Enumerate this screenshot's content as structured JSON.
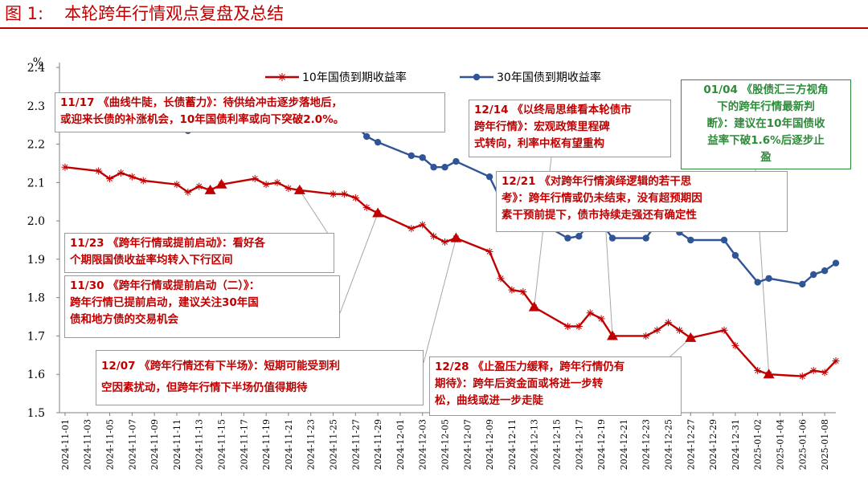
{
  "figure": {
    "number": "图 1:",
    "title": "本轮跨年行情观点复盘及总结"
  },
  "colors": {
    "title": "#c00000",
    "series_10y": "#c00000",
    "series_30y": "#2f5597",
    "annotation_text": "#c00000",
    "annotation_green": "#2e8b3a"
  },
  "chart_data": {
    "type": "line",
    "ylabel": "%",
    "ylim": [
      1.5,
      2.4
    ],
    "yticks": [
      "1.5",
      "1.6",
      "1.7",
      "1.8",
      "1.9",
      "2.0",
      "2.1",
      "2.2",
      "2.3",
      "2.4"
    ],
    "xticks": [
      "2024-11-01",
      "2024-11-03",
      "2024-11-05",
      "2024-11-07",
      "2024-11-09",
      "2024-11-11",
      "2024-11-13",
      "2024-11-15",
      "2024-11-17",
      "2024-11-19",
      "2024-11-21",
      "2024-11-23",
      "2024-11-25",
      "2024-11-27",
      "2024-11-29",
      "2024-12-01",
      "2024-12-03",
      "2024-12-05",
      "2024-12-07",
      "2024-12-09",
      "2024-12-11",
      "2024-12-13",
      "2024-12-15",
      "2024-12-17",
      "2024-12-19",
      "2024-12-21",
      "2024-12-23",
      "2024-12-25",
      "2024-12-27",
      "2024-12-29",
      "2024-12-31",
      "2025-01-02",
      "2025-01-04",
      "2025-01-06",
      "2025-01-08"
    ],
    "legend_position": "top-center",
    "grid": false,
    "series": [
      {
        "name": "10年国债到期收益率",
        "color": "#c00000",
        "marker": "star",
        "points": [
          [
            "2024-11-01",
            2.14
          ],
          [
            "2024-11-04",
            2.13
          ],
          [
            "2024-11-05",
            2.11
          ],
          [
            "2024-11-06",
            2.125
          ],
          [
            "2024-11-07",
            2.115
          ],
          [
            "2024-11-08",
            2.105
          ],
          [
            "2024-11-11",
            2.095
          ],
          [
            "2024-11-12",
            2.075
          ],
          [
            "2024-11-13",
            2.09
          ],
          [
            "2024-11-14",
            2.08
          ],
          [
            "2024-11-15",
            2.095
          ],
          [
            "2024-11-18",
            2.11
          ],
          [
            "2024-11-19",
            2.095
          ],
          [
            "2024-11-20",
            2.1
          ],
          [
            "2024-11-21",
            2.085
          ],
          [
            "2024-11-22",
            2.08
          ],
          [
            "2024-11-25",
            2.07
          ],
          [
            "2024-11-26",
            2.07
          ],
          [
            "2024-11-27",
            2.06
          ],
          [
            "2024-11-28",
            2.035
          ],
          [
            "2024-11-29",
            2.02
          ],
          [
            "2024-12-02",
            1.98
          ],
          [
            "2024-12-03",
            1.99
          ],
          [
            "2024-12-04",
            1.96
          ],
          [
            "2024-12-05",
            1.945
          ],
          [
            "2024-12-06",
            1.955
          ],
          [
            "2024-12-09",
            1.92
          ],
          [
            "2024-12-10",
            1.85
          ],
          [
            "2024-12-11",
            1.82
          ],
          [
            "2024-12-12",
            1.815
          ],
          [
            "2024-12-13",
            1.775
          ],
          [
            "2024-12-16",
            1.725
          ],
          [
            "2024-12-17",
            1.725
          ],
          [
            "2024-12-18",
            1.76
          ],
          [
            "2024-12-19",
            1.745
          ],
          [
            "2024-12-20",
            1.7
          ],
          [
            "2024-12-23",
            1.7
          ],
          [
            "2024-12-24",
            1.715
          ],
          [
            "2024-12-25",
            1.735
          ],
          [
            "2024-12-26",
            1.715
          ],
          [
            "2024-12-27",
            1.695
          ],
          [
            "2024-12-30",
            1.715
          ],
          [
            "2024-12-31",
            1.675
          ],
          [
            "2025-01-02",
            1.61
          ],
          [
            "2025-01-03",
            1.6
          ],
          [
            "2025-01-06",
            1.595
          ],
          [
            "2025-01-07",
            1.61
          ],
          [
            "2025-01-08",
            1.605
          ],
          [
            "2025-01-09",
            1.635
          ]
        ],
        "highlighted": [
          "2024-11-14",
          "2024-11-15",
          "2024-11-22",
          "2024-11-29",
          "2024-12-06",
          "2024-12-13",
          "2024-12-20",
          "2024-12-27",
          "2025-01-03"
        ]
      },
      {
        "name": "30年国债到期收益率",
        "color": "#2f5597",
        "marker": "circle",
        "points": [
          [
            "2024-11-01",
            2.315
          ],
          [
            "2024-11-04",
            2.305
          ],
          [
            "2024-11-05",
            2.285
          ],
          [
            "2024-11-06",
            2.29
          ],
          [
            "2024-11-07",
            2.28
          ],
          [
            "2024-11-08",
            2.275
          ],
          [
            "2024-11-11",
            2.26
          ],
          [
            "2024-11-12",
            2.235
          ],
          [
            "2024-11-13",
            2.26
          ],
          [
            "2024-11-14",
            2.26
          ],
          [
            "2024-11-15",
            2.285
          ],
          [
            "2024-11-18",
            2.315
          ],
          [
            "2024-11-19",
            2.285
          ],
          [
            "2024-11-20",
            2.305
          ],
          [
            "2024-11-21",
            2.275
          ],
          [
            "2024-11-22",
            2.265
          ],
          [
            "2024-11-25",
            2.24
          ],
          [
            "2024-11-26",
            2.245
          ],
          [
            "2024-11-27",
            2.25
          ],
          [
            "2024-11-28",
            2.22
          ],
          [
            "2024-11-29",
            2.205
          ],
          [
            "2024-12-02",
            2.17
          ],
          [
            "2024-12-03",
            2.165
          ],
          [
            "2024-12-04",
            2.14
          ],
          [
            "2024-12-05",
            2.14
          ],
          [
            "2024-12-06",
            2.155
          ],
          [
            "2024-12-09",
            2.115
          ],
          [
            "2024-12-10",
            2.055
          ],
          [
            "2024-12-11",
            2.04
          ],
          [
            "2024-12-12",
            2.045
          ],
          [
            "2024-12-13",
            2.005
          ],
          [
            "2024-12-16",
            1.955
          ],
          [
            "2024-12-17",
            1.96
          ],
          [
            "2024-12-18",
            1.995
          ],
          [
            "2024-12-19",
            1.995
          ],
          [
            "2024-12-20",
            1.955
          ],
          [
            "2024-12-23",
            1.955
          ],
          [
            "2024-12-24",
            1.995
          ],
          [
            "2024-12-25",
            2.005
          ],
          [
            "2024-12-26",
            1.97
          ],
          [
            "2024-12-27",
            1.95
          ],
          [
            "2024-12-30",
            1.95
          ],
          [
            "2024-12-31",
            1.91
          ],
          [
            "2025-01-02",
            1.84
          ],
          [
            "2025-01-03",
            1.85
          ],
          [
            "2025-01-06",
            1.835
          ],
          [
            "2025-01-07",
            1.86
          ],
          [
            "2025-01-08",
            1.87
          ],
          [
            "2025-01-09",
            1.89
          ]
        ]
      }
    ]
  },
  "annotations": [
    {
      "id": "a1117",
      "text": "11/17 《曲线牛陡，长债蓄力》：待供给冲击逐步落地后，\n或迎来长债的补涨机会，10年国债利率或向下突破2.0%。",
      "anchor": [
        "2024-11-17",
        2.315
      ]
    },
    {
      "id": "a1123",
      "text": "11/23 《跨年行情或提前启动》：看好各\n个期限国债收益率均转入下行区间",
      "anchor": [
        "2024-11-22",
        2.08
      ]
    },
    {
      "id": "a1130",
      "text": "11/30 《跨年行情或提前启动（二）》：\n跨年行情已提前启动，建议关注30年国\n债和地方债的交易机会",
      "anchor": [
        "2024-11-29",
        2.02
      ]
    },
    {
      "id": "a1207",
      "text": "12/07 《跨年行情还有下半场》：短期可能受到利\n空因素扰动，但跨年行情下半场仍值得期待",
      "anchor": [
        "2024-12-06",
        1.955
      ]
    },
    {
      "id": "a1214",
      "text": "12/14 《以终局思维看本轮债市\n跨年行情》：宏观政策里程碑\n式转向，利率中枢有望重构",
      "anchor": [
        "2024-12-13",
        1.775
      ]
    },
    {
      "id": "a1221",
      "text": "12/21 《对跨年行情演绎逻辑的若干思\n考》：跨年行情或仍未结束，没有超预期因\n素干预前提下，债市持续走强还有确定性",
      "anchor": [
        "2024-12-20",
        1.7
      ]
    },
    {
      "id": "a1228",
      "text": "12/28 《止盈压力缓释，跨年行情仍有\n期待》：跨年后资金面或将进一步转\n松，曲线或进一步走陡",
      "anchor": [
        "2024-12-27",
        1.695
      ]
    },
    {
      "id": "a0104",
      "text": "01/04 《股债汇三方视角\n下的跨年行情最新判\n断》：建议在10年国债收\n益率下破1.6%后逐步止\n盈",
      "anchor": [
        "2025-01-03",
        1.6
      ]
    }
  ]
}
